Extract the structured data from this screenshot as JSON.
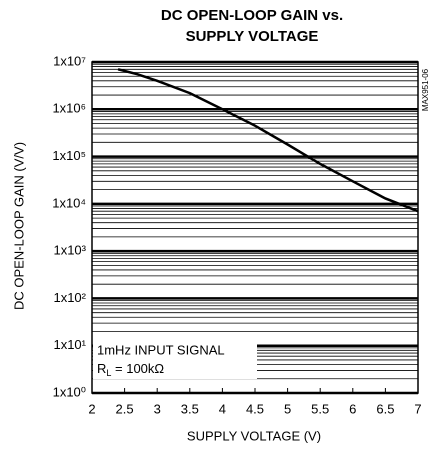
{
  "chart_data": {
    "type": "line",
    "title": [
      "DC OPEN-LOOP GAIN vs.",
      "SUPPLY VOLTAGE"
    ],
    "x_label": "SUPPLY VOLTAGE (V)",
    "y_label": "DC OPEN-LOOP GAIN (V/V)",
    "figure_id": "MAX951-06",
    "annotation": {
      "line1": "1mHz INPUT SIGNAL",
      "line2": {
        "main": "R",
        "sub": "L",
        "rest": " = 100kΩ"
      }
    },
    "x": [
      2.4,
      2.7,
      3,
      3.5,
      4,
      4.5,
      5,
      5.5,
      6,
      6.5,
      7
    ],
    "series": [
      {
        "name": "DC open-loop gain",
        "color": "#000000",
        "values": [
          7000000,
          5500000,
          4000000,
          2200000,
          1000000,
          450000,
          180000,
          70000,
          30000,
          13000,
          7000
        ]
      }
    ],
    "xlim": [
      2,
      7
    ],
    "xticks": [
      2,
      2.5,
      3,
      3.5,
      4,
      4.5,
      5,
      5.5,
      6,
      6.5,
      7
    ],
    "ylim": [
      1,
      10000000
    ],
    "log_y": true,
    "grid": true,
    "yticks": [
      {
        "value": 1,
        "label": "1x10⁰"
      },
      {
        "value": 10,
        "label": "1x10¹"
      },
      {
        "value": 100,
        "label": "1x10²"
      },
      {
        "value": 1000,
        "label": "1x10³"
      },
      {
        "value": 10000,
        "label": "1x10⁴"
      },
      {
        "value": 100000,
        "label": "1x10⁵"
      },
      {
        "value": 1000000,
        "label": "1x10⁶"
      },
      {
        "value": 10000000,
        "label": "1x10⁷"
      }
    ]
  }
}
